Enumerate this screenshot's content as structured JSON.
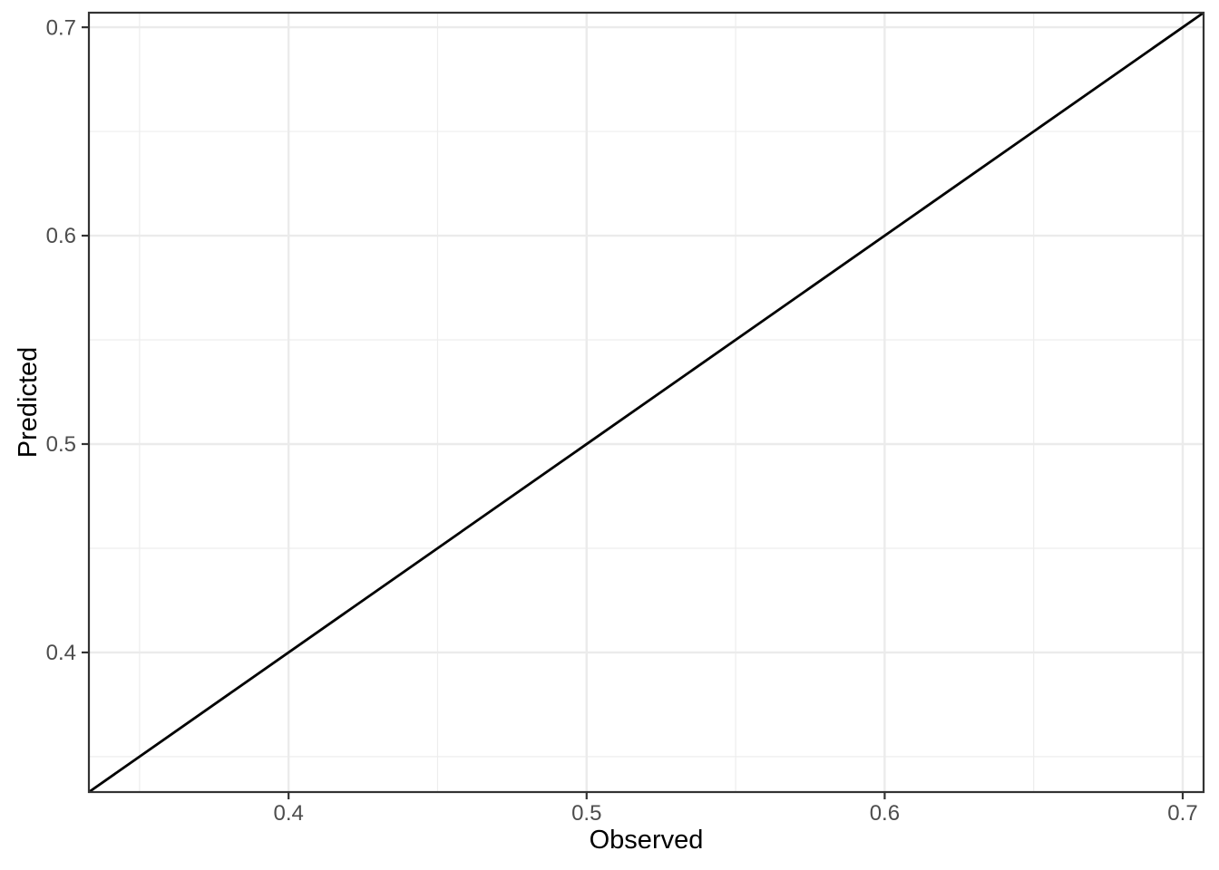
{
  "chart_data": {
    "type": "line",
    "title": "",
    "xlabel": "Observed",
    "ylabel": "Predicted",
    "x_range": [
      0.333,
      0.707
    ],
    "y_range": [
      0.333,
      0.707
    ],
    "x_major_ticks": [
      0.4,
      0.5,
      0.6,
      0.7
    ],
    "x_tick_labels": [
      "0.4",
      "0.5",
      "0.6",
      "0.7"
    ],
    "y_major_ticks": [
      0.4,
      0.5,
      0.6,
      0.7
    ],
    "y_tick_labels": [
      "0.4",
      "0.5",
      "0.6",
      "0.7"
    ],
    "x_minor_ticks": [
      0.35,
      0.45,
      0.55,
      0.65
    ],
    "y_minor_ticks": [
      0.35,
      0.45,
      0.55,
      0.65
    ],
    "grid": "major+minor",
    "legend": "none",
    "series": [
      {
        "name": "identity-line",
        "x": [
          0.333,
          0.707
        ],
        "y": [
          0.333,
          0.707
        ],
        "color": "#000000",
        "stroke_width": 2.8
      }
    ]
  },
  "styles": {
    "page_background": "#ffffff",
    "panel_background": "#ffffff",
    "grid_major_color": "#ebebeb",
    "grid_minor_color": "#ededed",
    "panel_border_color": "#333333",
    "tick_mark_color": "#333333",
    "tick_label_color": "#4d4d4d",
    "axis_title_color": "#000000"
  }
}
